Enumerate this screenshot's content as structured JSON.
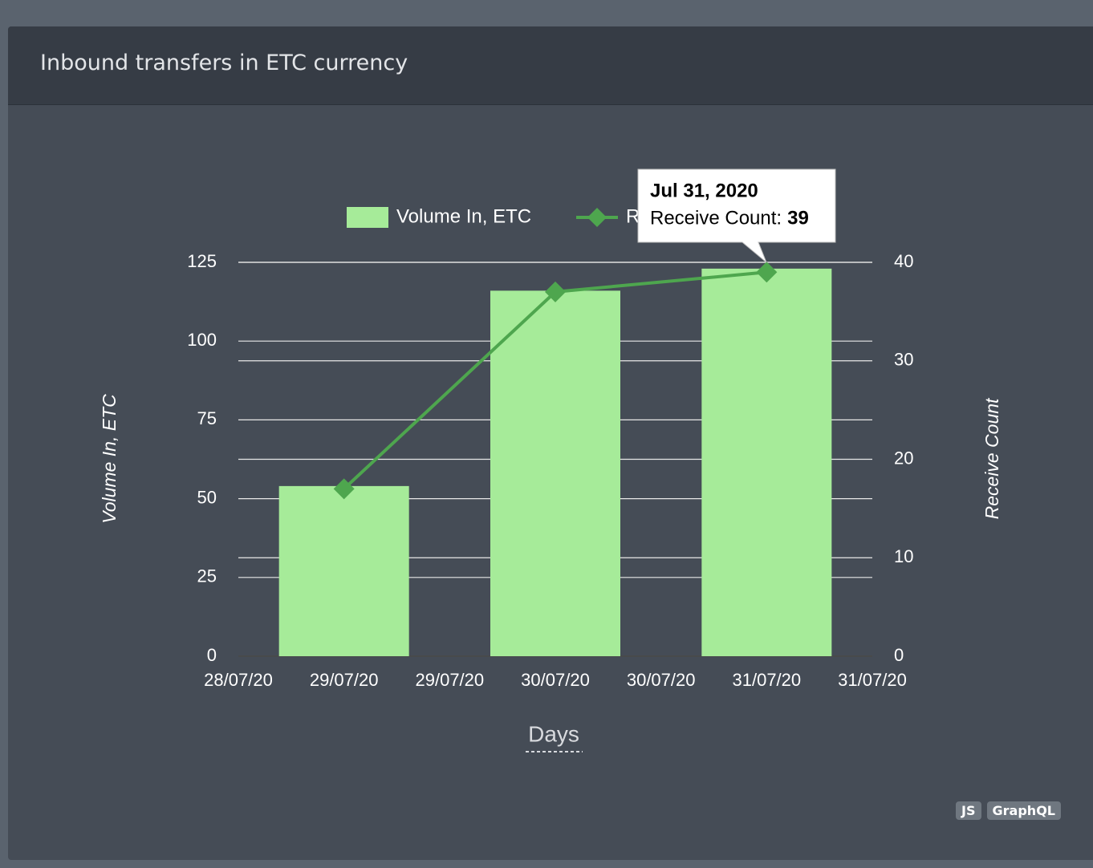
{
  "header": {
    "title": "Inbound transfers in ETC currency"
  },
  "chart_data": {
    "type": "combo",
    "x": [
      "29/07/20",
      "30/07/20",
      "31/07/20"
    ],
    "xticks": [
      "28/07/20",
      "29/07/20",
      "29/07/20",
      "30/07/20",
      "30/07/20",
      "31/07/20",
      "31/07/20"
    ],
    "xlabel": "Days",
    "ylabel": "Volume In, ETC",
    "y2label": "Receive Count",
    "ylim": [
      0,
      125
    ],
    "yticks": [
      0,
      25,
      50,
      75,
      100,
      125
    ],
    "y2lim": [
      0,
      40
    ],
    "y2ticks": [
      0,
      10,
      20,
      30,
      40
    ],
    "grid": true,
    "series": [
      {
        "name": "Volume In, ETC",
        "type": "bar",
        "color": "#a6eb99",
        "values": [
          54,
          116,
          123
        ]
      },
      {
        "name": "Receive Count",
        "type": "line",
        "axis": "y2",
        "color": "#4ea64e",
        "values": [
          17,
          37,
          39
        ]
      }
    ],
    "tooltip": {
      "title": "Jul 31, 2020",
      "label": "Receive Count:",
      "value": 39
    }
  },
  "badges": [
    "JS",
    "GraphQL"
  ]
}
